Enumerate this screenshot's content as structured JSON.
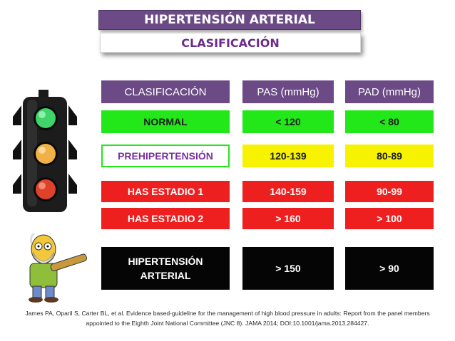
{
  "header": {
    "title": "HIPERTENSIÓN ARTERIAL",
    "subtitle": "CLASIFICACIÓN"
  },
  "table": {
    "columns": [
      "CLASIFICACIÓN",
      "PAS (mmHg)",
      "PAD (mmHg)"
    ],
    "rows": [
      {
        "label": "NORMAL",
        "pas": "< 120",
        "pad": "< 80",
        "color": "#22e81a"
      },
      {
        "label": "PREHIPERTENSIÓN",
        "pas": "120-139",
        "pad": "80-89",
        "color": "#f6f200"
      },
      {
        "label": "HAS ESTADIO 1",
        "pas": "140-159",
        "pad": "90-99",
        "color": "#ee1f1f"
      },
      {
        "label": "HAS ESTADIO 2",
        "pas": "> 160",
        "pad": "> 100",
        "color": "#ee1f1f"
      },
      {
        "label_line1": "HIPERTENSIÓN",
        "label_line2": "ARTERIAL",
        "pas": "> 150",
        "pad": "> 90",
        "color": "#050505"
      }
    ]
  },
  "colors": {
    "header_purple": "#6b4a86",
    "green": "#22e81a",
    "yellow": "#f6f200",
    "red": "#ee1f1f",
    "black": "#050505"
  },
  "icons": [
    "traffic-light-icon",
    "grandpa-illustration"
  ],
  "citation": {
    "line1": "James PA, Oparil S, Carter BL, et al. Evidence based-guideline for the management of high blood pressure in adults: Report from the panel members",
    "line2": "appointed to the Eighth Joint National Committee (JNC 8).  JAMA 2014; DOI:10.1001/jama.2013.284427."
  }
}
